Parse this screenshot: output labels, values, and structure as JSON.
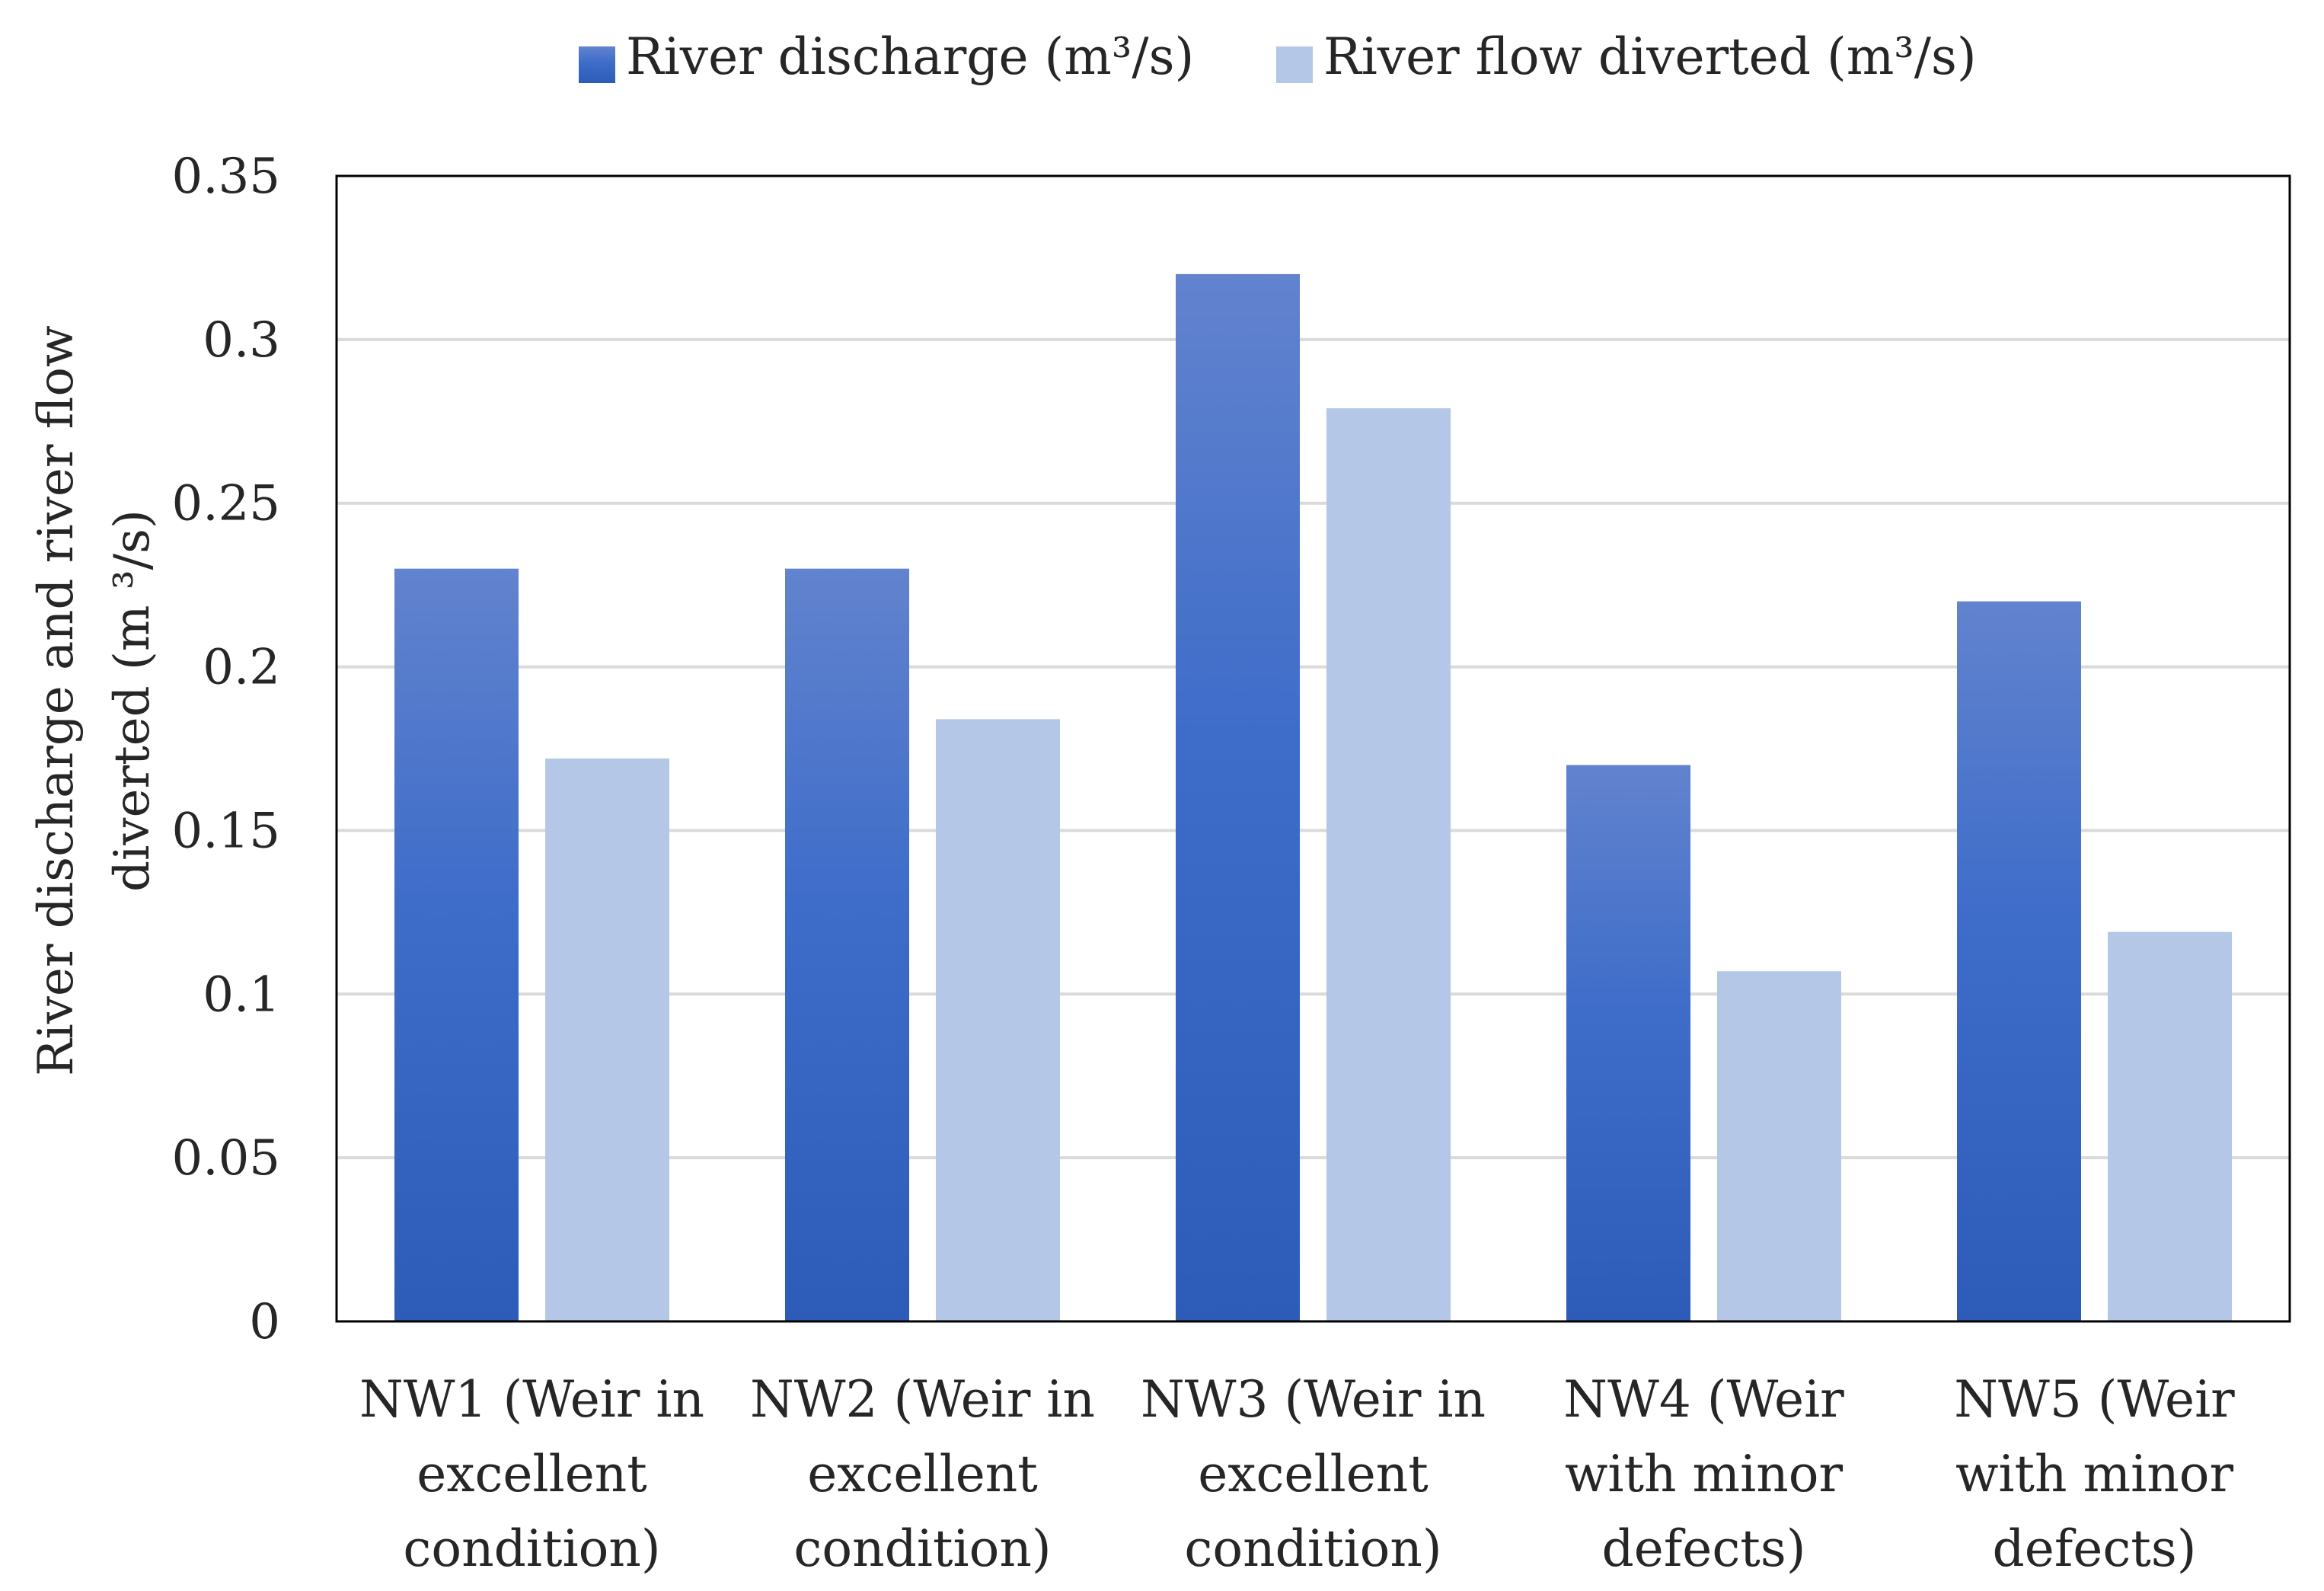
{
  "chart_data": {
    "type": "bar",
    "title": "",
    "xlabel": "",
    "ylabel": [
      "River discharge and river flow",
      "diverted (m ³/s)"
    ],
    "ylim": [
      0,
      0.35
    ],
    "yticks": [
      "0",
      "0.05",
      "0.1",
      "0.15",
      "0.2",
      "0.25",
      "0.3",
      "0.35"
    ],
    "grid": true,
    "legend_position": "top",
    "categories": [
      [
        "NW1 (Weir in",
        "excellent",
        "condition)"
      ],
      [
        "NW2 (Weir in",
        "excellent",
        "condition)"
      ],
      [
        "NW3 (Weir in",
        "excellent",
        "condition)"
      ],
      [
        "NW4 (Weir",
        "with minor",
        "defects)"
      ],
      [
        "NW5 (Weir",
        "with minor",
        "defects)"
      ]
    ],
    "series": [
      {
        "name": "River discharge (m³/s)",
        "values": [
          0.23,
          0.23,
          0.32,
          0.17,
          0.22
        ],
        "color": "#3A66C4"
      },
      {
        "name": "River flow diverted (m³/s)",
        "values": [
          0.172,
          0.184,
          0.279,
          0.107,
          0.119
        ],
        "color": "#B4C7E7"
      }
    ]
  }
}
